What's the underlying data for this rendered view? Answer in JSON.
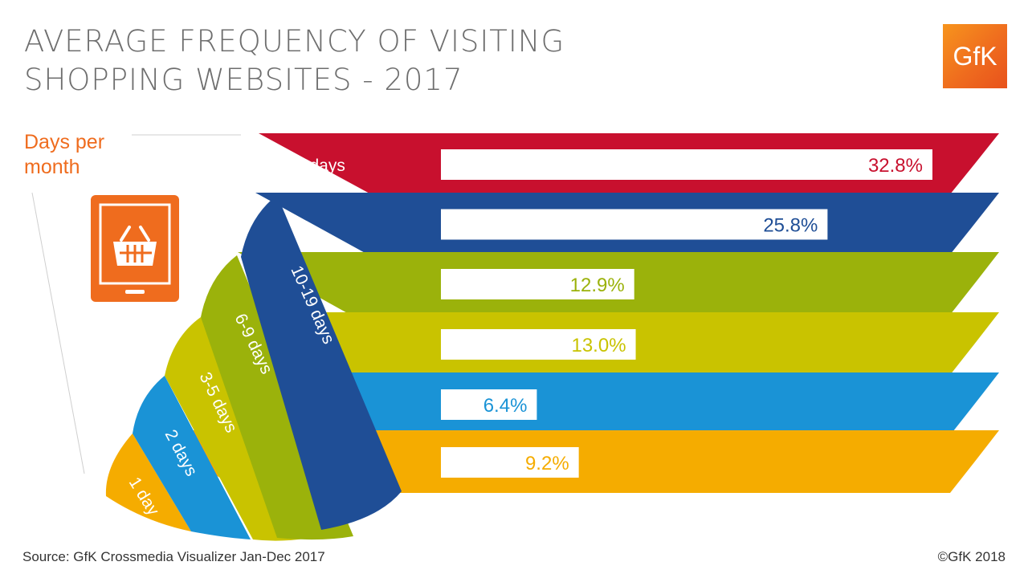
{
  "header": {
    "title_line1": "AVERAGE FREQUENCY OF VISITING",
    "title_line2": "SHOPPING WEBSITES - 2017",
    "logo_text": "GfK"
  },
  "legend_title": "Days per month",
  "footer": {
    "source": "Source: GfK Crossmedia Visualizer Jan-Dec 2017",
    "copyright": "©GfK 2018"
  },
  "icons": [
    "tablet-shopping-basket-icon"
  ],
  "chart_data": {
    "type": "bar",
    "orientation": "horizontal",
    "unit": "%",
    "categories": [
      "20+ days",
      "10-19 days",
      "6-9 days",
      "3-5 days",
      "2 days",
      "1 day"
    ],
    "values": [
      32.8,
      25.8,
      12.9,
      13.0,
      6.4,
      9.2
    ],
    "value_labels": [
      "32.8%",
      "25.8%",
      "12.9%",
      "13.0%",
      "6.4%",
      "9.2%"
    ],
    "colors": [
      "#c8102e",
      "#1f4e96",
      "#9bb20b",
      "#c9c300",
      "#1a93d6",
      "#f5ac00"
    ],
    "xlim": [
      0,
      32.8
    ]
  }
}
